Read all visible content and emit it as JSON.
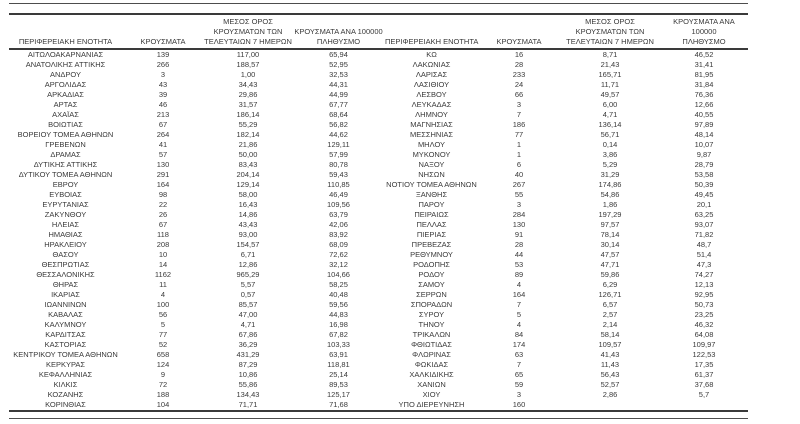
{
  "colors": {
    "text": "#3a3a3a",
    "line_thin": "#4d4d4d",
    "line_thick": "#3a3a3a",
    "background": "#ffffff"
  },
  "table": {
    "headers": {
      "region": "ΠΕΡΙΦΕΡΕΙΑΚΗ ΕΝΟΤΗΤΑ",
      "cases": "ΚΡΟΥΣΜΑΤΑ",
      "avg7": "ΜΕΣΟΣ ΟΡΟΣ\nΚΡΟΥΣΜΑΤΩΝ ΤΩΝ\nΤΕΛΕΥΤΑΙΩΝ 7 ΗΜΕΡΩΝ",
      "per100k": "ΚΡΟΥΣΜΑΤΑ ΑΝΑ 100000\nΠΛΗΘΥΣΜΟ"
    },
    "left_rows": [
      [
        "ΑΙΤΩΛΟΑΚΑΡΝΑΝΙΑΣ",
        "139",
        "117,00",
        "65,94"
      ],
      [
        "ΑΝΑΤΟΛΙΚΗΣ ΑΤΤΙΚΗΣ",
        "266",
        "188,57",
        "52,95"
      ],
      [
        "ΑΝΔΡΟΥ",
        "3",
        "1,00",
        "32,53"
      ],
      [
        "ΑΡΓΟΛΙΔΑΣ",
        "43",
        "34,43",
        "44,31"
      ],
      [
        "ΑΡΚΑΔΙΑΣ",
        "39",
        "29,86",
        "44,99"
      ],
      [
        "ΑΡΤΑΣ",
        "46",
        "31,57",
        "67,77"
      ],
      [
        "ΑΧΑΪΑΣ",
        "213",
        "186,14",
        "68,64"
      ],
      [
        "ΒΟΙΩΤΙΑΣ",
        "67",
        "55,29",
        "56,82"
      ],
      [
        "ΒΟΡΕΙΟΥ ΤΟΜΕΑ ΑΘΗΝΩΝ",
        "264",
        "182,14",
        "44,62"
      ],
      [
        "ΓΡΕΒΕΝΩΝ",
        "41",
        "21,86",
        "129,11"
      ],
      [
        "ΔΡΑΜΑΣ",
        "57",
        "50,00",
        "57,99"
      ],
      [
        "ΔΥΤΙΚΗΣ ΑΤΤΙΚΗΣ",
        "130",
        "83,43",
        "80,78"
      ],
      [
        "ΔΥΤΙΚΟΥ ΤΟΜΕΑ ΑΘΗΝΩΝ",
        "291",
        "204,14",
        "59,43"
      ],
      [
        "ΕΒΡΟΥ",
        "164",
        "129,14",
        "110,85"
      ],
      [
        "ΕΥΒΟΙΑΣ",
        "98",
        "58,00",
        "46,49"
      ],
      [
        "ΕΥΡΥΤΑΝΙΑΣ",
        "22",
        "16,43",
        "109,56"
      ],
      [
        "ΖΑΚΥΝΘΟΥ",
        "26",
        "14,86",
        "63,79"
      ],
      [
        "ΗΛΕΙΑΣ",
        "67",
        "43,43",
        "42,06"
      ],
      [
        "ΗΜΑΘΙΑΣ",
        "118",
        "93,00",
        "83,92"
      ],
      [
        "ΗΡΑΚΛΕΙΟΥ",
        "208",
        "154,57",
        "68,09"
      ],
      [
        "ΘΑΣΟΥ",
        "10",
        "6,71",
        "72,62"
      ],
      [
        "ΘΕΣΠΡΩΤΙΑΣ",
        "14",
        "12,86",
        "32,12"
      ],
      [
        "ΘΕΣΣΑΛΟΝΙΚΗΣ",
        "1162",
        "965,29",
        "104,66"
      ],
      [
        "ΘΗΡΑΣ",
        "11",
        "5,57",
        "58,25"
      ],
      [
        "ΙΚΑΡΙΑΣ",
        "4",
        "0,57",
        "40,48"
      ],
      [
        "ΙΩΑΝΝΙΝΩΝ",
        "100",
        "85,57",
        "59,56"
      ],
      [
        "ΚΑΒΑΛΑΣ",
        "56",
        "47,00",
        "44,83"
      ],
      [
        "ΚΑΛΥΜΝΟΥ",
        "5",
        "4,71",
        "16,98"
      ],
      [
        "ΚΑΡΔΙΤΣΑΣ",
        "77",
        "67,86",
        "67,82"
      ],
      [
        "ΚΑΣΤΟΡΙΑΣ",
        "52",
        "36,29",
        "103,33"
      ],
      [
        "ΚΕΝΤΡΙΚΟΥ ΤΟΜΕΑ ΑΘΗΝΩΝ",
        "658",
        "431,29",
        "63,91"
      ],
      [
        "ΚΕΡΚΥΡΑΣ",
        "124",
        "87,29",
        "118,81"
      ],
      [
        "ΚΕΦΑΛΛΗΝΙΑΣ",
        "9",
        "10,86",
        "25,14"
      ],
      [
        "ΚΙΛΚΙΣ",
        "72",
        "55,86",
        "89,53"
      ],
      [
        "ΚΟΖΑΝΗΣ",
        "188",
        "134,43",
        "125,17"
      ],
      [
        "ΚΟΡΙΝΘΙΑΣ",
        "104",
        "71,71",
        "71,68"
      ]
    ],
    "right_rows": [
      [
        "ΚΩ",
        "16",
        "8,71",
        "46,52"
      ],
      [
        "ΛΑΚΩΝΙΑΣ",
        "28",
        "21,43",
        "31,41"
      ],
      [
        "ΛΑΡΙΣΑΣ",
        "233",
        "165,71",
        "81,95"
      ],
      [
        "ΛΑΣΙΘΙΟΥ",
        "24",
        "11,71",
        "31,84"
      ],
      [
        "ΛΕΣΒΟΥ",
        "66",
        "49,57",
        "76,36"
      ],
      [
        "ΛΕΥΚΑΔΑΣ",
        "3",
        "6,00",
        "12,66"
      ],
      [
        "ΛΗΜΝΟΥ",
        "7",
        "4,71",
        "40,55"
      ],
      [
        "ΜΑΓΝΗΣΙΑΣ",
        "186",
        "136,14",
        "97,89"
      ],
      [
        "ΜΕΣΣΗΝΙΑΣ",
        "77",
        "56,71",
        "48,14"
      ],
      [
        "ΜΗΛΟΥ",
        "1",
        "0,14",
        "10,07"
      ],
      [
        "ΜΥΚΟΝΟΥ",
        "1",
        "3,86",
        "9,87"
      ],
      [
        "ΝΑΞΟΥ",
        "6",
        "5,29",
        "28,79"
      ],
      [
        "ΝΗΣΩΝ",
        "40",
        "31,29",
        "53,58"
      ],
      [
        "ΝΟΤΙΟΥ ΤΟΜΕΑ ΑΘΗΝΩΝ",
        "267",
        "174,86",
        "50,39"
      ],
      [
        "ΞΑΝΘΗΣ",
        "55",
        "54,86",
        "49,45"
      ],
      [
        "ΠΑΡΟΥ",
        "3",
        "1,86",
        "20,1"
      ],
      [
        "ΠΕΙΡΑΙΩΣ",
        "284",
        "197,29",
        "63,25"
      ],
      [
        "ΠΕΛΛΑΣ",
        "130",
        "97,57",
        "93,07"
      ],
      [
        "ΠΙΕΡΙΑΣ",
        "91",
        "78,14",
        "71,82"
      ],
      [
        "ΠΡΕΒΕΖΑΣ",
        "28",
        "30,14",
        "48,7"
      ],
      [
        "ΡΕΘΥΜΝΟΥ",
        "44",
        "47,57",
        "51,4"
      ],
      [
        "ΡΟΔΟΠΗΣ",
        "53",
        "47,71",
        "47,3"
      ],
      [
        "ΡΟΔΟΥ",
        "89",
        "59,86",
        "74,27"
      ],
      [
        "ΣΑΜΟΥ",
        "4",
        "6,29",
        "12,13"
      ],
      [
        "ΣΕΡΡΩΝ",
        "164",
        "126,71",
        "92,95"
      ],
      [
        "ΣΠΟΡΑΔΩΝ",
        "7",
        "6,57",
        "50,73"
      ],
      [
        "ΣΥΡΟΥ",
        "5",
        "2,57",
        "23,25"
      ],
      [
        "ΤΗΝΟΥ",
        "4",
        "2,14",
        "46,32"
      ],
      [
        "ΤΡΙΚΑΛΩΝ",
        "84",
        "58,14",
        "64,08"
      ],
      [
        "ΦΘΙΩΤΙΔΑΣ",
        "174",
        "109,57",
        "109,97"
      ],
      [
        "ΦΛΩΡΙΝΑΣ",
        "63",
        "41,43",
        "122,53"
      ],
      [
        "ΦΩΚΙΔΑΣ",
        "7",
        "11,43",
        "17,35"
      ],
      [
        "ΧΑΛΚΙΔΙΚΗΣ",
        "65",
        "56,43",
        "61,37"
      ],
      [
        "ΧΑΝΙΩΝ",
        "59",
        "52,57",
        "37,68"
      ],
      [
        "ΧΙΟΥ",
        "3",
        "2,86",
        "5,7"
      ],
      [
        "ΥΠΟ ΔΙΕΡΕΥΝΗΣΗ",
        "160",
        "",
        ""
      ]
    ]
  }
}
